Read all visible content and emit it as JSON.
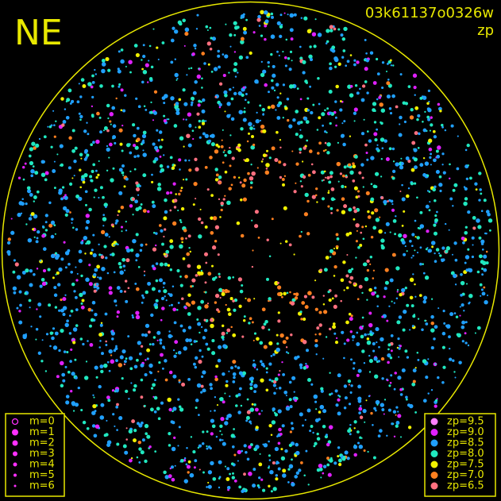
{
  "header": {
    "corner_label": "NE",
    "frame_id": "03k61137o0326w",
    "color_key": "zp"
  },
  "magnitude_legend": {
    "color": "#ff30ff",
    "items": [
      {
        "label": "m=0"
      },
      {
        "label": "m=1"
      },
      {
        "label": "m=2"
      },
      {
        "label": "m=3"
      },
      {
        "label": "m=4"
      },
      {
        "label": "m=5"
      },
      {
        "label": "m=6"
      }
    ]
  },
  "zp_legend": {
    "items": [
      {
        "label": "zp=9.5",
        "color": "#ff80ff"
      },
      {
        "label": "zp=9.0",
        "color": "#e020ff"
      },
      {
        "label": "zp=8.5",
        "color": "#20a0ff"
      },
      {
        "label": "zp=8.0",
        "color": "#20e8c0"
      },
      {
        "label": "zp=7.5",
        "color": "#f0f000"
      },
      {
        "label": "zp=7.0",
        "color": "#ff8020"
      },
      {
        "label": "zp=6.5",
        "color": "#ff7080"
      }
    ]
  }
}
